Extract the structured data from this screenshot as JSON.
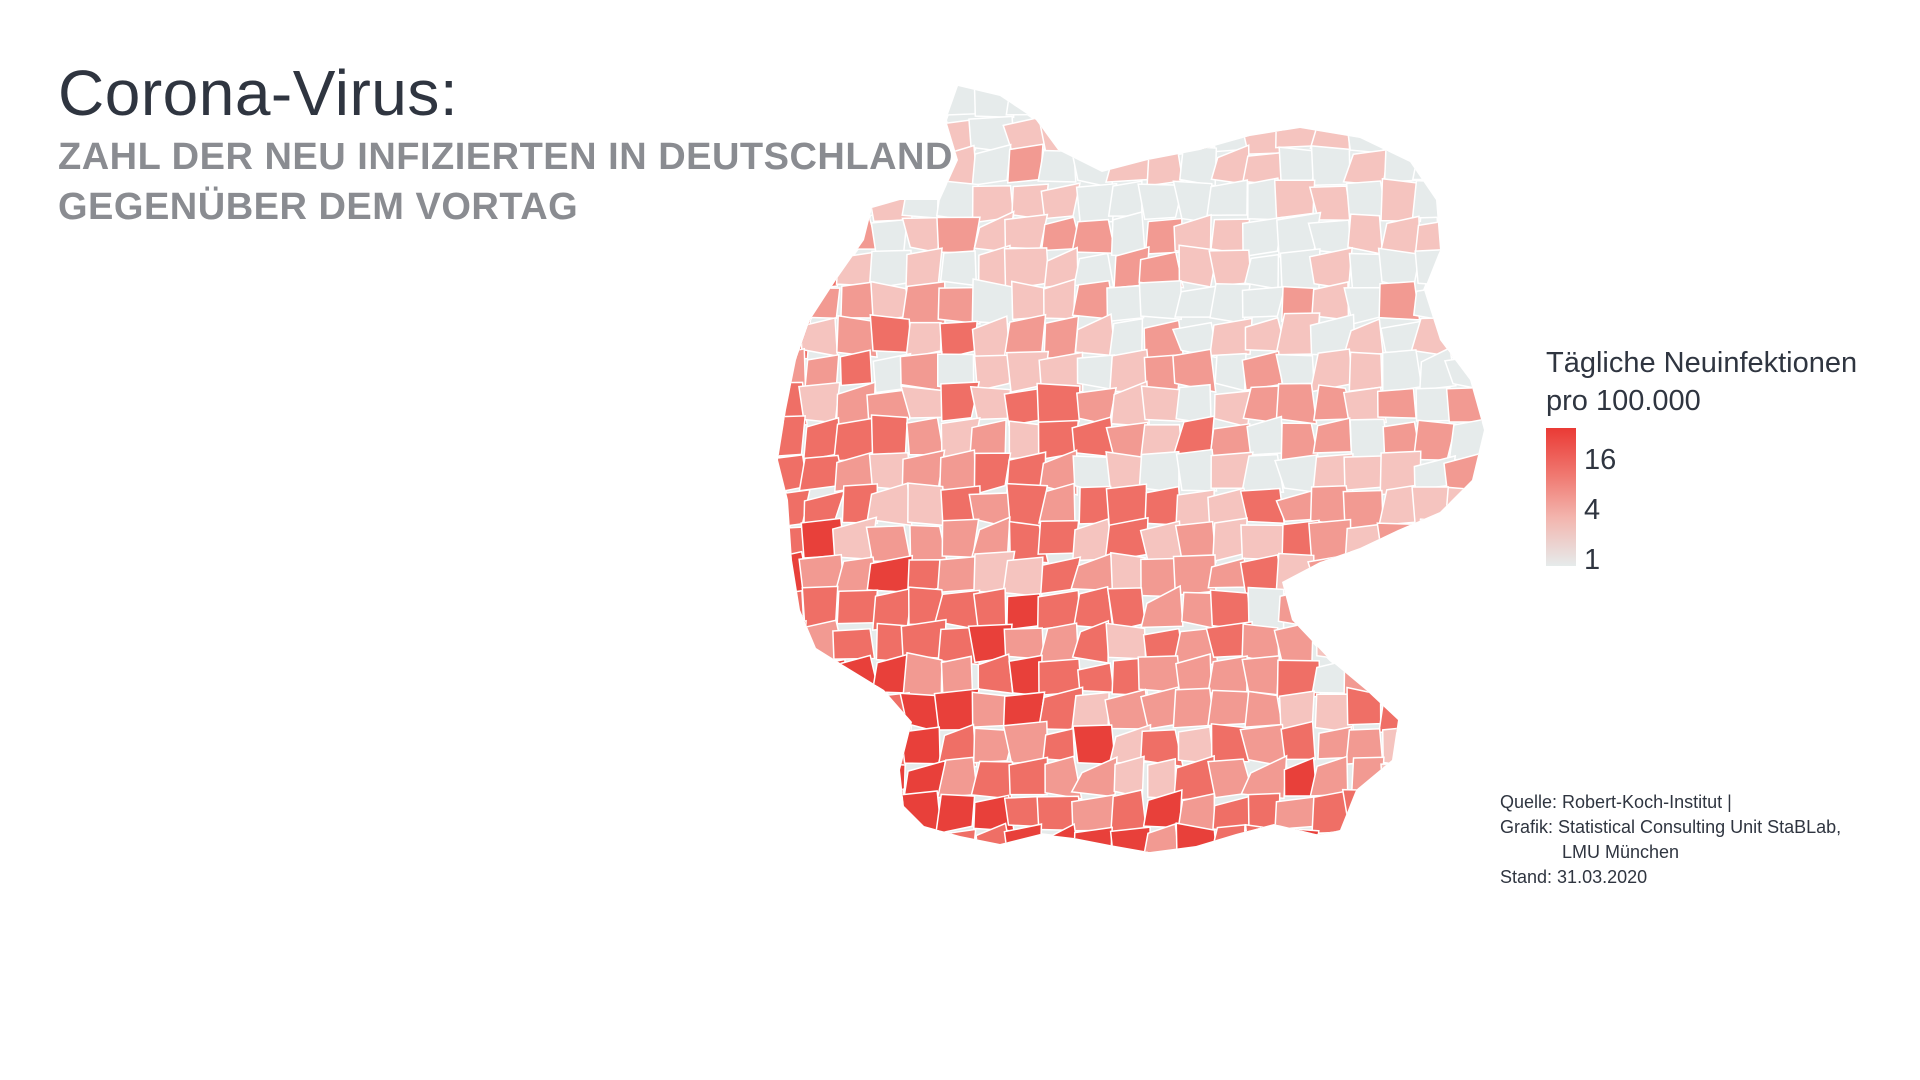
{
  "header": {
    "title": "Corona-Virus:",
    "subtitle_line1": "ZAHL DER NEU INFIZIERTEN IN DEUTSCHLAND",
    "subtitle_line2": "GEGENÜBER DEM VORTAG"
  },
  "legend": {
    "title_line1": "Tägliche Neuinfektionen",
    "title_line2": "pro 100.000",
    "ticks": [
      "16",
      "4",
      "1"
    ],
    "colors": {
      "high": "#ea3a35",
      "mid": "#f07a72",
      "low": "#f3b5ae",
      "none": "#e6ebeb"
    }
  },
  "source": {
    "line1": "Quelle: Robert-Koch-Institut |",
    "line2": "Grafik: Statistical Consulting Unit StaBLab,",
    "line3": "LMU München",
    "line4": "Stand: 31.03.2020"
  },
  "map": {
    "region": "Deutschland",
    "hotspot_colors": [
      "#e8403a",
      "#ef6f66",
      "#f29a92",
      "#f5c4bf",
      "#e6ebeb"
    ]
  }
}
